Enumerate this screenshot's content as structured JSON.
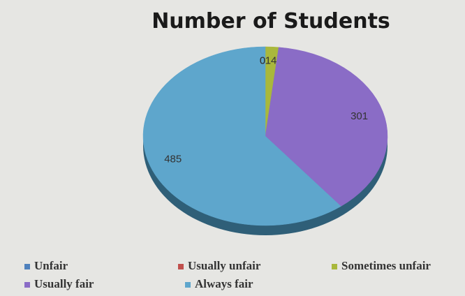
{
  "chart_data": {
    "type": "pie",
    "title": "Number of Students",
    "categories": [
      "Unfair",
      "Usually unfair",
      "Sometimes unfair",
      "Usually fair",
      "Always fair"
    ],
    "values": [
      0,
      0,
      14,
      301,
      485
    ],
    "colors": [
      "#4f81bd",
      "#c0504d",
      "#a9b83c",
      "#8a6cc6",
      "#5ea6cc"
    ],
    "legend": "bottom"
  }
}
